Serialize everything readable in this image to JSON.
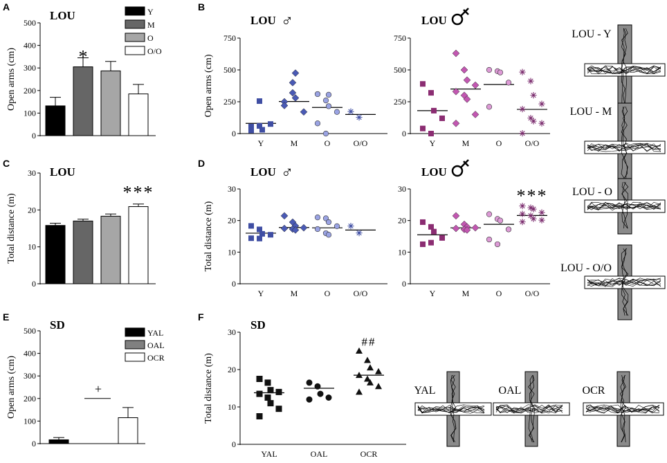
{
  "panel_labels": {
    "A": "A",
    "B": "B",
    "C": "C",
    "D": "D",
    "E": "E",
    "F": "F"
  },
  "male_symbol": "♂",
  "chart_data": [
    {
      "id": "A",
      "type": "bar",
      "title": "LOU",
      "ylabel": "Open arms (cm)",
      "ylim": [
        0,
        500
      ],
      "yticks": [
        0,
        100,
        200,
        300,
        400,
        500
      ],
      "categories": [
        "Y",
        "M",
        "O",
        "O/O"
      ],
      "values": [
        132,
        305,
        287,
        185
      ],
      "errors": [
        38,
        40,
        42,
        42
      ],
      "colors": [
        "#000000",
        "#666666",
        "#a6a6a6",
        "#ffffff"
      ],
      "legend": [
        "Y",
        "M",
        "O",
        "O/O"
      ],
      "annotations": [
        {
          "cat": 1,
          "text": "*"
        }
      ]
    },
    {
      "id": "B-male",
      "type": "scatter",
      "title": "LOU",
      "sex": "male",
      "ylabel": "Open arms (cm)",
      "ylim": [
        0,
        750
      ],
      "yticks": [
        0,
        250,
        500,
        750
      ],
      "categories": [
        "Y",
        "M",
        "O",
        "O/O"
      ],
      "means": [
        80,
        252,
        205,
        150
      ],
      "points": [
        [
          55,
          60,
          30,
          75,
          25,
          255
        ],
        [
          250,
          400,
          475,
          170,
          220,
          320,
          280
        ],
        [
          310,
          260,
          215,
          170,
          80,
          0,
          305
        ],
        [
          170,
          125
        ]
      ]
    },
    {
      "id": "B-female",
      "type": "scatter",
      "title": "LOU",
      "sex": "female",
      "ylim": [
        0,
        750
      ],
      "yticks": [
        0,
        250,
        500,
        750
      ],
      "categories": [
        "Y",
        "M",
        "O",
        "O/O"
      ],
      "means": [
        180,
        350,
        385,
        190
      ],
      "points": [
        [
          390,
          320,
          180,
          120,
          40,
          0
        ],
        [
          630,
          500,
          420,
          380,
          330,
          300,
          270,
          150,
          80
        ],
        [
          500,
          490,
          480,
          400,
          210
        ],
        [
          480,
          410,
          300,
          230,
          190,
          120,
          95,
          80,
          0
        ]
      ]
    },
    {
      "id": "C",
      "type": "bar",
      "title": "LOU",
      "ylabel": "Total distance (m)",
      "ylim": [
        0,
        30
      ],
      "yticks": [
        0,
        10,
        20,
        30
      ],
      "categories": [
        "Y",
        "M",
        "O",
        "O/O"
      ],
      "values": [
        15.8,
        17.0,
        18.3,
        20.9
      ],
      "errors": [
        0.6,
        0.5,
        0.6,
        0.7
      ],
      "colors": [
        "#000000",
        "#666666",
        "#a6a6a6",
        "#ffffff"
      ],
      "annotations": [
        {
          "cat": 3,
          "text": "***"
        }
      ]
    },
    {
      "id": "D-male",
      "type": "scatter",
      "title": "LOU",
      "sex": "male",
      "ylabel": "Total distance (m)",
      "ylim": [
        0,
        30
      ],
      "yticks": [
        0,
        10,
        20,
        30
      ],
      "categories": [
        "Y",
        "M",
        "O",
        "O/O"
      ],
      "means": [
        16,
        17.8,
        17.7,
        17
      ],
      "points": [
        [
          18.3,
          17.2,
          15.8,
          15.5,
          14.4,
          14.3
        ],
        [
          21.5,
          19.5,
          18.3,
          17.7,
          17.5,
          17.3,
          17
        ],
        [
          21,
          20.7,
          19.5,
          18.2,
          17.3,
          16,
          15.5
        ],
        [
          18.2,
          16
        ]
      ]
    },
    {
      "id": "D-female",
      "type": "scatter",
      "title": "LOU",
      "sex": "female",
      "ylim": [
        0,
        30
      ],
      "yticks": [
        0,
        10,
        20,
        30
      ],
      "categories": [
        "Y",
        "M",
        "O",
        "O/O"
      ],
      "means": [
        15.5,
        17.7,
        18.8,
        21.6
      ],
      "points": [
        [
          19.5,
          18,
          16.5,
          14.5,
          12.5,
          13
        ],
        [
          21.5,
          18.8,
          18,
          17.7,
          17.5,
          17.2,
          17
        ],
        [
          22,
          20.5,
          20,
          17.2,
          14,
          12.5
        ],
        [
          24.5,
          24,
          23.5,
          22.5,
          22,
          21.5,
          20.5,
          20,
          19.5
        ]
      ],
      "annotations": [
        {
          "cat": 3,
          "text": "***"
        }
      ]
    },
    {
      "id": "E",
      "type": "bar",
      "title": "SD",
      "ylabel": "Open arms (cm)",
      "ylim": [
        0,
        500
      ],
      "yticks": [
        0,
        100,
        200,
        300,
        400,
        500
      ],
      "categories": [
        "YAL",
        "OAL",
        "OCR"
      ],
      "values": [
        17,
        0,
        115
      ],
      "errors": [
        10,
        0,
        45
      ],
      "colors": [
        "#000000",
        "#808080",
        "#ffffff"
      ],
      "legend": [
        "YAL",
        "OAL",
        "OCR"
      ],
      "annotations": [
        {
          "text": "+"
        }
      ]
    },
    {
      "id": "F",
      "type": "scatter",
      "title": "SD",
      "ylabel": "Total distance (m)",
      "ylim": [
        0,
        30
      ],
      "yticks": [
        0,
        10,
        20,
        30
      ],
      "categories": [
        "YAL",
        "OAL",
        "OCR"
      ],
      "means": [
        13.8,
        15,
        18.5
      ],
      "points": [
        [
          17.5,
          16.5,
          14.5,
          14,
          13.5,
          12.5,
          11,
          9.5,
          7.5
        ],
        [
          16.5,
          15.5,
          13.5,
          12.5,
          12
        ],
        [
          25,
          22.5,
          20.5,
          19.5,
          18.5,
          17.5,
          16.5,
          15.5,
          14
        ]
      ],
      "annotations": [
        {
          "cat": 2,
          "text": "##"
        }
      ]
    }
  ],
  "maze_labels": [
    "LOU - Y",
    "LOU - M",
    "LOU - O",
    "LOU - O/O"
  ],
  "sd_maze_labels": [
    "YAL",
    "OAL",
    "OCR"
  ]
}
